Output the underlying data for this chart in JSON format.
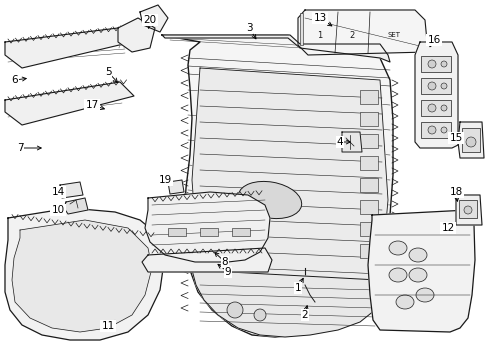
{
  "bg_color": "#ffffff",
  "line_color": "#1a1a1a",
  "labels": {
    "1": [
      305,
      272,
      298,
      288
    ],
    "2": [
      312,
      300,
      305,
      315
    ],
    "3": [
      252,
      42,
      248,
      30
    ],
    "4": [
      354,
      142,
      341,
      142
    ],
    "5": [
      110,
      73,
      110,
      82
    ],
    "6": [
      17,
      85,
      28,
      80
    ],
    "7": [
      22,
      148,
      44,
      148
    ],
    "8": [
      228,
      258,
      218,
      248
    ],
    "9": [
      225,
      272,
      215,
      265
    ],
    "10": [
      62,
      210,
      74,
      210
    ],
    "11": [
      105,
      325,
      118,
      320
    ],
    "12": [
      448,
      228,
      435,
      228
    ],
    "13": [
      322,
      18,
      335,
      28
    ],
    "14": [
      60,
      192,
      72,
      192
    ],
    "15": [
      456,
      138,
      454,
      148
    ],
    "16": [
      435,
      40,
      428,
      52
    ],
    "17": [
      95,
      105,
      106,
      110
    ],
    "18": [
      457,
      192,
      455,
      202
    ],
    "19": [
      168,
      185,
      178,
      192
    ],
    "20": [
      152,
      22,
      145,
      32
    ]
  }
}
